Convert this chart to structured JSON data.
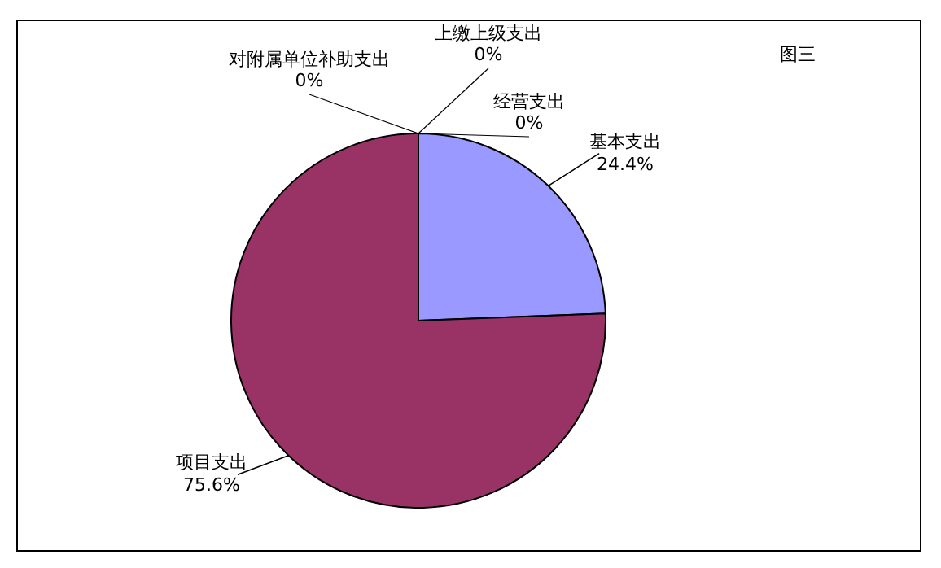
{
  "chart_data": {
    "type": "pie",
    "title": "图三",
    "categories": [
      "基本支出",
      "项目支出",
      "对附属单位补助支出",
      "上缴上级支出",
      "经营支出"
    ],
    "values": [
      24.4,
      75.6,
      0,
      0,
      0
    ],
    "value_labels": [
      "24.4%",
      "75.6%",
      "0%",
      "0%",
      "0%"
    ],
    "colors": [
      "#9999ff",
      "#993366",
      "#ffffcc",
      "#ccffff",
      "#660066"
    ],
    "legend": false
  }
}
